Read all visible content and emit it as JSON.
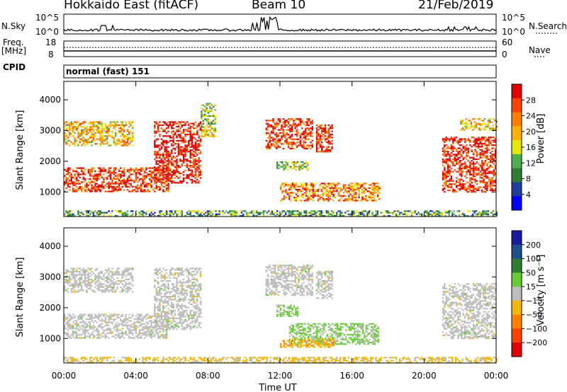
{
  "header": {
    "station": "Hokkaido East (fitACF)",
    "beam": "Beam 10",
    "date": "21/Feb/2019"
  },
  "left_labels": {
    "nsky": "N.Sky",
    "freq_line1": "Freq.",
    "freq_line2": "[MHz]",
    "cpid": "CPID"
  },
  "right_labels": {
    "nsearch": "N.Search",
    "nave": "Nave"
  },
  "noise_ticks": {
    "top": "10^5",
    "bottom": "10^0"
  },
  "freq_ticks": {
    "top": "18",
    "bottom": "8"
  },
  "nave_ticks": {
    "top": "60",
    "bottom": "0"
  },
  "cpid_text": "normal (fast) 151",
  "colors": {
    "power": [
      "#0000ff",
      "#1e3fa0",
      "#2e7d32",
      "#4caf50",
      "#e6e600",
      "#ffb000",
      "#ff8000",
      "#ff4000",
      "#e00000"
    ],
    "velocity": [
      "#1a1aa0",
      "#1f4e8c",
      "#2f7d32",
      "#66cc33",
      "#bdbdbd",
      "#f5b800",
      "#ff8000",
      "#ff4000",
      "#e00000"
    ]
  },
  "chart_data": [
    {
      "type": "heatmap",
      "panel": "power",
      "x": [
        "00:00",
        "04:00",
        "08:00",
        "12:00",
        "16:00",
        "20:00",
        "00:00"
      ],
      "xlim": [
        0,
        24
      ],
      "ylabel": "Slant Range [km]",
      "yticks": [
        "1000",
        "2000",
        "3000",
        "4000"
      ],
      "ylim": [
        200,
        4600
      ],
      "colorbar": {
        "label": "Power [dB]",
        "ticks": [
          "4",
          "8",
          "12",
          "16",
          "20",
          "24",
          "28"
        ],
        "range": [
          0,
          30
        ]
      },
      "echo_regions": [
        {
          "t0": 0.0,
          "t1": 5.8,
          "r0": 1000,
          "r1": 1800,
          "value": 26
        },
        {
          "t0": 5.0,
          "t1": 7.6,
          "r0": 1300,
          "r1": 3300,
          "value": 28
        },
        {
          "t0": 0.0,
          "t1": 3.8,
          "r0": 2500,
          "r1": 3300,
          "value": 18
        },
        {
          "t0": 7.6,
          "t1": 8.4,
          "r0": 2800,
          "r1": 3900,
          "value": 14
        },
        {
          "t0": 11.2,
          "t1": 13.8,
          "r0": 2400,
          "r1": 3400,
          "value": 26
        },
        {
          "t0": 14.0,
          "t1": 14.9,
          "r0": 2300,
          "r1": 3200,
          "value": 27
        },
        {
          "t0": 12.0,
          "t1": 17.5,
          "r0": 700,
          "r1": 1300,
          "value": 22
        },
        {
          "t0": 11.8,
          "t1": 13.5,
          "r0": 1700,
          "r1": 2000,
          "value": 14
        },
        {
          "t0": 21.0,
          "t1": 24.0,
          "r0": 1000,
          "r1": 2800,
          "value": 27
        },
        {
          "t0": 22.0,
          "t1": 24.0,
          "r0": 3000,
          "r1": 3400,
          "value": 18
        },
        {
          "t0": 0.0,
          "t1": 24.0,
          "r0": 220,
          "r1": 400,
          "value": 10
        }
      ]
    },
    {
      "type": "heatmap",
      "panel": "velocity",
      "x": [
        "00:00",
        "04:00",
        "08:00",
        "12:00",
        "16:00",
        "20:00",
        "00:00"
      ],
      "xlim": [
        0,
        24
      ],
      "xlabel": "Time UT",
      "ylabel": "Slant Range [km]",
      "yticks": [
        "1000",
        "2000",
        "3000",
        "4000"
      ],
      "ylim": [
        200,
        4600
      ],
      "colorbar": {
        "label": "Velocity [m s⁻¹]",
        "ticks": [
          "200",
          "100",
          "50",
          "15",
          "−15",
          "−50",
          "−100",
          "−200"
        ],
        "range": [
          -250,
          250
        ]
      },
      "echo_regions": [
        {
          "t0": 0.0,
          "t1": 5.8,
          "r0": 1000,
          "r1": 1800,
          "value": 0
        },
        {
          "t0": 5.0,
          "t1": 7.6,
          "r0": 1300,
          "r1": 3300,
          "value": 0
        },
        {
          "t0": 0.0,
          "t1": 3.8,
          "r0": 2500,
          "r1": 3300,
          "value": 0
        },
        {
          "t0": 11.2,
          "t1": 13.8,
          "r0": 2400,
          "r1": 3400,
          "value": 0
        },
        {
          "t0": 14.0,
          "t1": 14.9,
          "r0": 2300,
          "r1": 3200,
          "value": 0
        },
        {
          "t0": 12.5,
          "t1": 17.5,
          "r0": 800,
          "r1": 1500,
          "value": 40
        },
        {
          "t0": 12.0,
          "t1": 15.0,
          "r0": 700,
          "r1": 1000,
          "value": -70
        },
        {
          "t0": 11.8,
          "t1": 13.0,
          "r0": 1700,
          "r1": 2100,
          "value": 40
        },
        {
          "t0": 21.0,
          "t1": 24.0,
          "r0": 1000,
          "r1": 2800,
          "value": 0
        },
        {
          "t0": 0.0,
          "t1": 24.0,
          "r0": 220,
          "r1": 400,
          "value": -40
        }
      ]
    }
  ]
}
